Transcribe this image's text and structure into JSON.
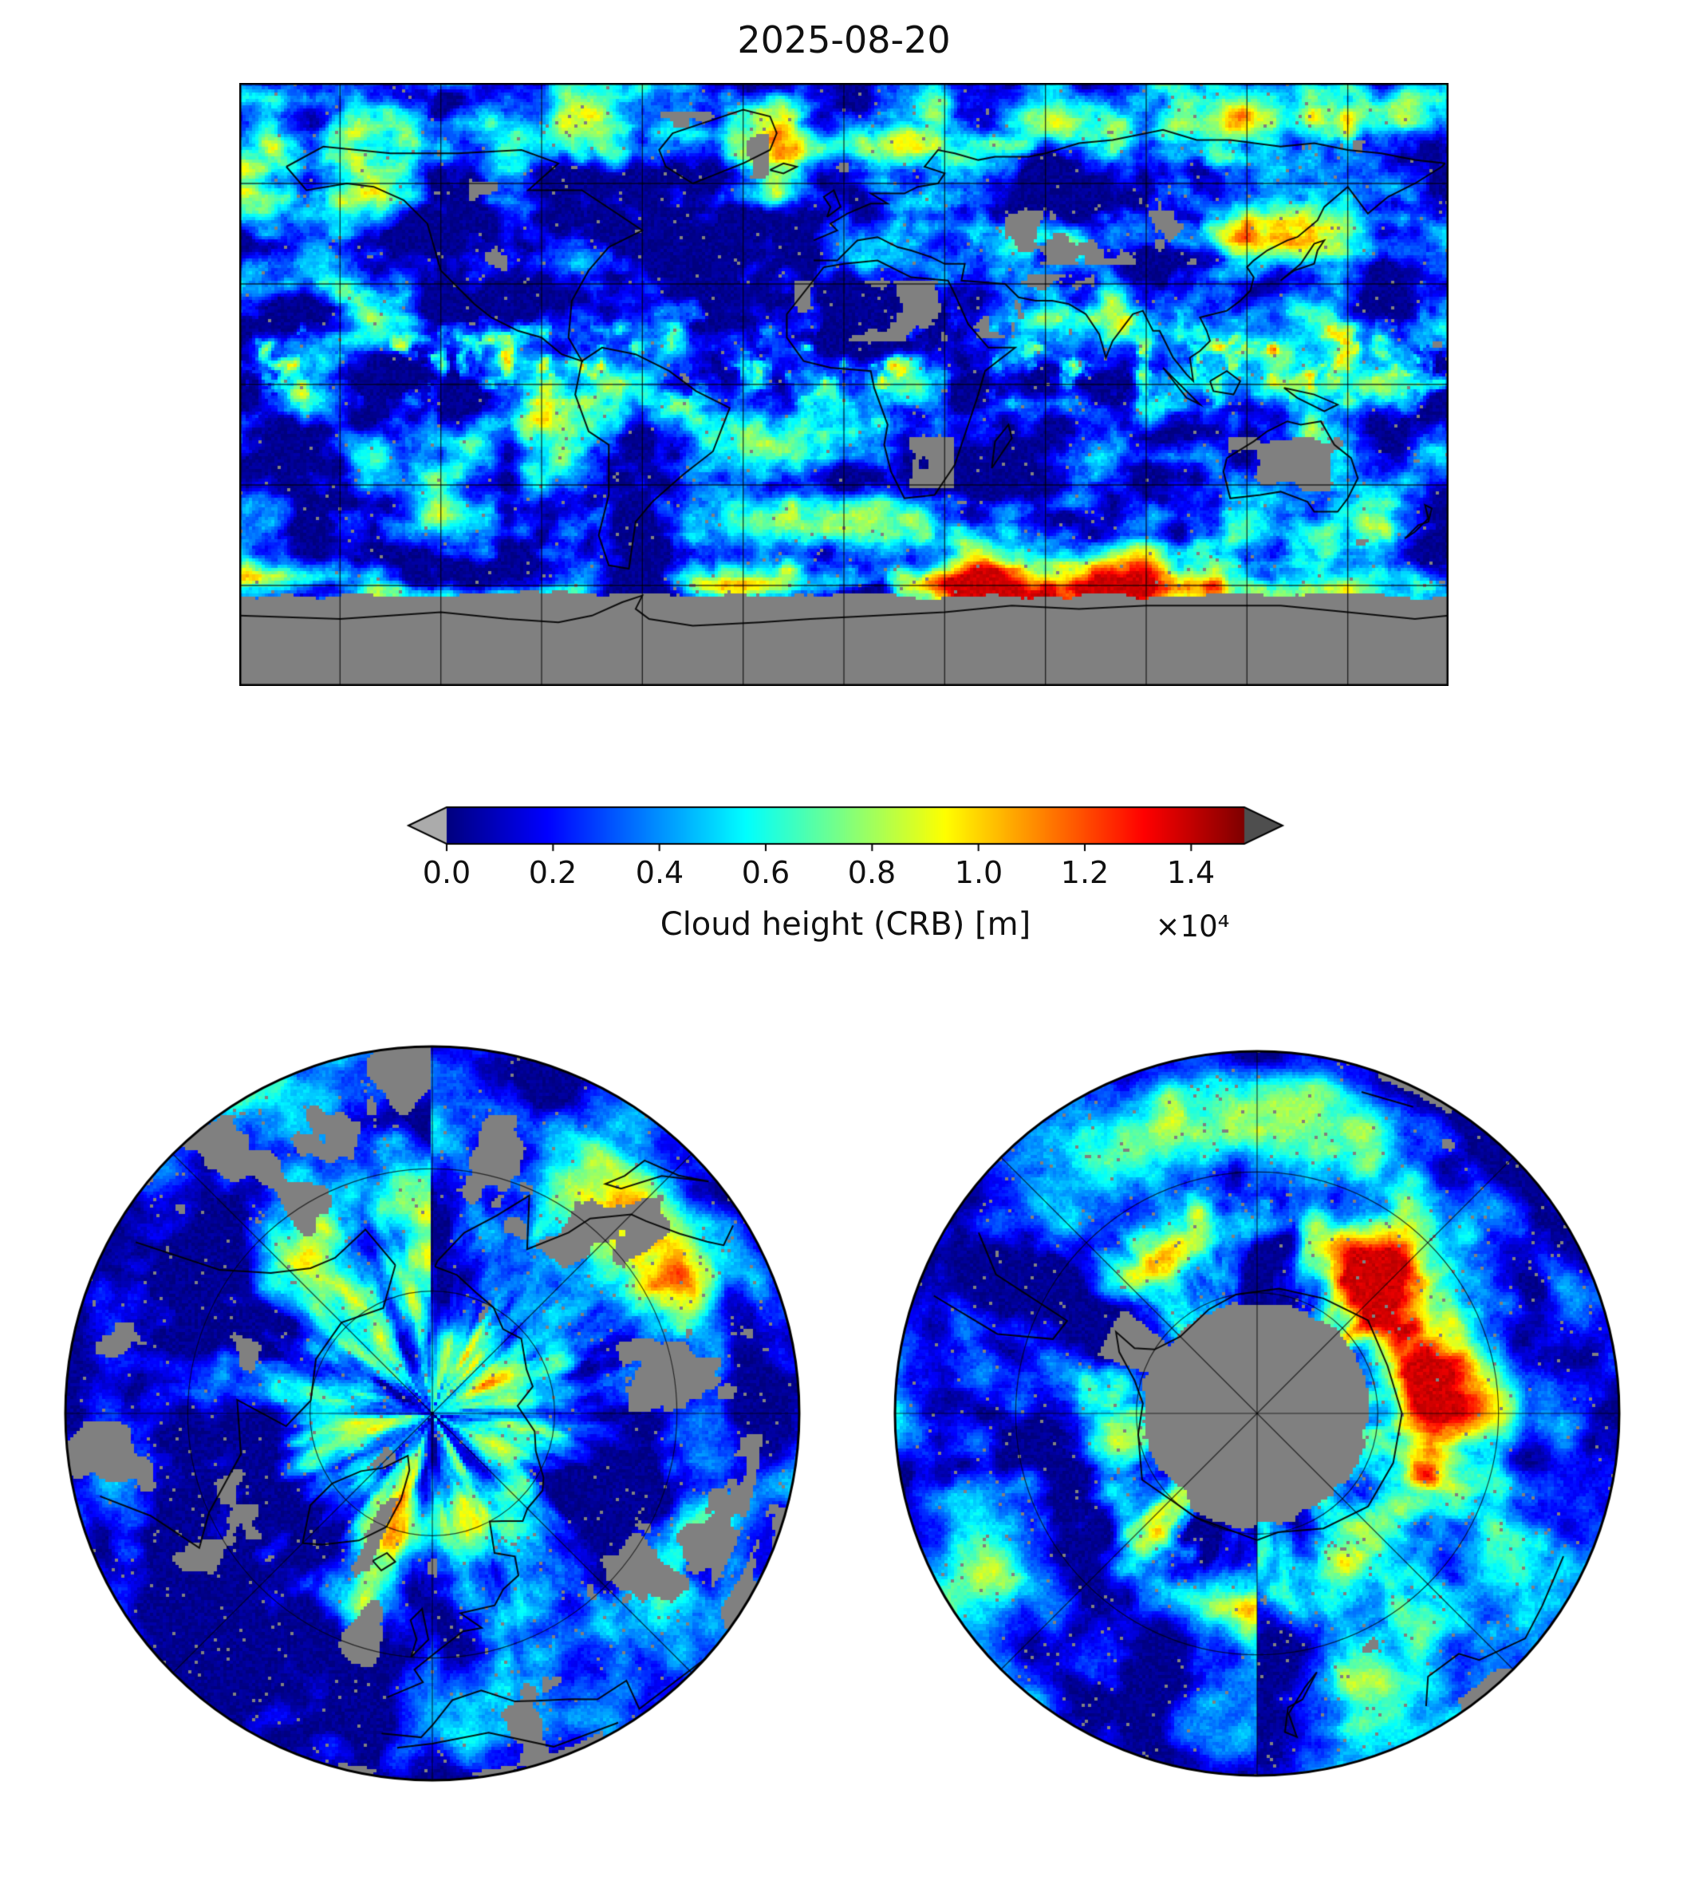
{
  "figure": {
    "title": "2025-08-20",
    "background_color": "#ffffff"
  },
  "colorbar": {
    "label": "Cloud height (CRB) [m]",
    "offset_text": "×10⁴",
    "ticks": [
      "0.0",
      "0.2",
      "0.4",
      "0.6",
      "0.8",
      "1.0",
      "1.2",
      "1.4"
    ],
    "colormap": "jet",
    "under_arrow_color": "#ababab",
    "over_arrow_color": "#4e4e4e",
    "nodata_color": "#808080",
    "outline_color": "#000000"
  },
  "panels": {
    "global": {
      "name": "Global map",
      "projection": "equirectangular",
      "gridline_spacing_deg": 30
    },
    "north_polar": {
      "name": "North polar view",
      "projection": "north polar azimuthal"
    },
    "south_polar": {
      "name": "South polar view",
      "projection": "south polar azimuthal"
    }
  },
  "chart_data": {
    "type": "heatmap",
    "title": "2025-08-20",
    "variable": "Cloud height (CRB)",
    "units": "m",
    "colormap": "jet",
    "value_range": [
      0,
      15000
    ],
    "colorbar_ticks": [
      0,
      2000,
      4000,
      6000,
      8000,
      10000,
      12000,
      14000
    ],
    "colorbar_tick_labels": [
      "0.0",
      "0.2",
      "0.4",
      "0.6",
      "0.8",
      "1.0",
      "1.2",
      "1.4"
    ],
    "colorbar_scale_factor": 10000,
    "colorbar_label": "Cloud height (CRB) [m]",
    "colorbar_extend": "both",
    "nodata_color": "gray",
    "grid": true,
    "panels": [
      {
        "projection": "equirectangular",
        "lon_extent": [
          -180,
          180
        ],
        "lat_extent": [
          -90,
          90
        ],
        "gridlines_deg": 30,
        "description": "Global cloud height field: mostly 0–4 km (dark/medium blue) over oceans, cyan–green frontal bands in midlatitudes, scattered yellow convective cells in the tropics, and a bright 8–15 km yellow–orange–red band along the Southern Ocean near Antarctica; gray = no data over deserts (Sahara, Arabia, southern Africa, Australia), Greenland, and everywhere south of about 60°S."
      },
      {
        "projection": "north_polar_azimuthal",
        "lat_extent": [
          30,
          90
        ],
        "description": "Arctic view: predominantly low blue cloud with dark-blue swirls near the pole, cyan–green storm bands at the periphery and scattered gray no-data patches at lower latitudes."
      },
      {
        "projection": "south_polar_azimuthal",
        "lat_extent": [
          -90,
          -30
        ],
        "description": "Antarctic view: large gray no-data disk over the Antarctic interior, ringed by high yellow–orange–red cloud (including along the Antarctic Peninsula), with blue/cyan oceanic cloud farther out."
      }
    ]
  }
}
